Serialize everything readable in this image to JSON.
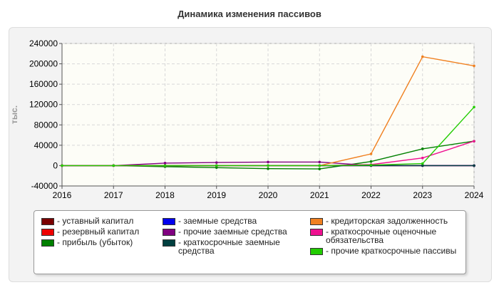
{
  "chart_data": {
    "type": "line",
    "title": "Динамика изменения пассивов",
    "xlabel": "",
    "ylabel": "тыс.",
    "x": [
      "2016",
      "2017",
      "2018",
      "2019",
      "2020",
      "2021",
      "2022",
      "2023",
      "2024"
    ],
    "ylim": [
      -40000,
      240000
    ],
    "yticks": [
      "-40000",
      "0",
      "40000",
      "80000",
      "120000",
      "160000",
      "200000",
      "240000"
    ],
    "grid": true,
    "legend_position": "bottom",
    "series": [
      {
        "name": "- уставный капитал",
        "color": "#7a0000",
        "values": [
          0,
          0,
          0,
          0,
          0,
          0,
          0,
          0,
          0
        ]
      },
      {
        "name": "- резервный капитал",
        "color": "#ee0000",
        "values": [
          0,
          0,
          0,
          0,
          0,
          0,
          0,
          0,
          0
        ]
      },
      {
        "name": "- прибыль (убыток)",
        "color": "#008000",
        "values": [
          0,
          0,
          -2000,
          -4000,
          -6000,
          -6500,
          8000,
          33000,
          48000
        ]
      },
      {
        "name": "- заемные средства",
        "color": "#0000ee",
        "values": [
          0,
          0,
          0,
          0,
          0,
          0,
          0,
          0,
          0
        ]
      },
      {
        "name": "- прочие заемные средства",
        "color": "#800080",
        "values": [
          0,
          0,
          5000,
          6000,
          7000,
          7000,
          0,
          0,
          0
        ]
      },
      {
        "name": "- краткосрочные заемные средства",
        "color": "#004040",
        "values": [
          0,
          0,
          0,
          0,
          0,
          0,
          0,
          0,
          0
        ]
      },
      {
        "name": "- кредиторская задолженность",
        "color": "#f08020",
        "values": [
          0,
          0,
          0,
          0,
          0,
          0,
          23000,
          214000,
          196000
        ]
      },
      {
        "name": "- краткосрочные оценочные обязательства",
        "color": "#ee1090",
        "values": [
          0,
          0,
          0,
          0,
          0,
          0,
          2000,
          15000,
          48000
        ]
      },
      {
        "name": "- прочие краткосрочные пассивы",
        "color": "#22cc00",
        "values": [
          0,
          0,
          0,
          0,
          0,
          0,
          1000,
          4000,
          115000
        ]
      }
    ]
  }
}
